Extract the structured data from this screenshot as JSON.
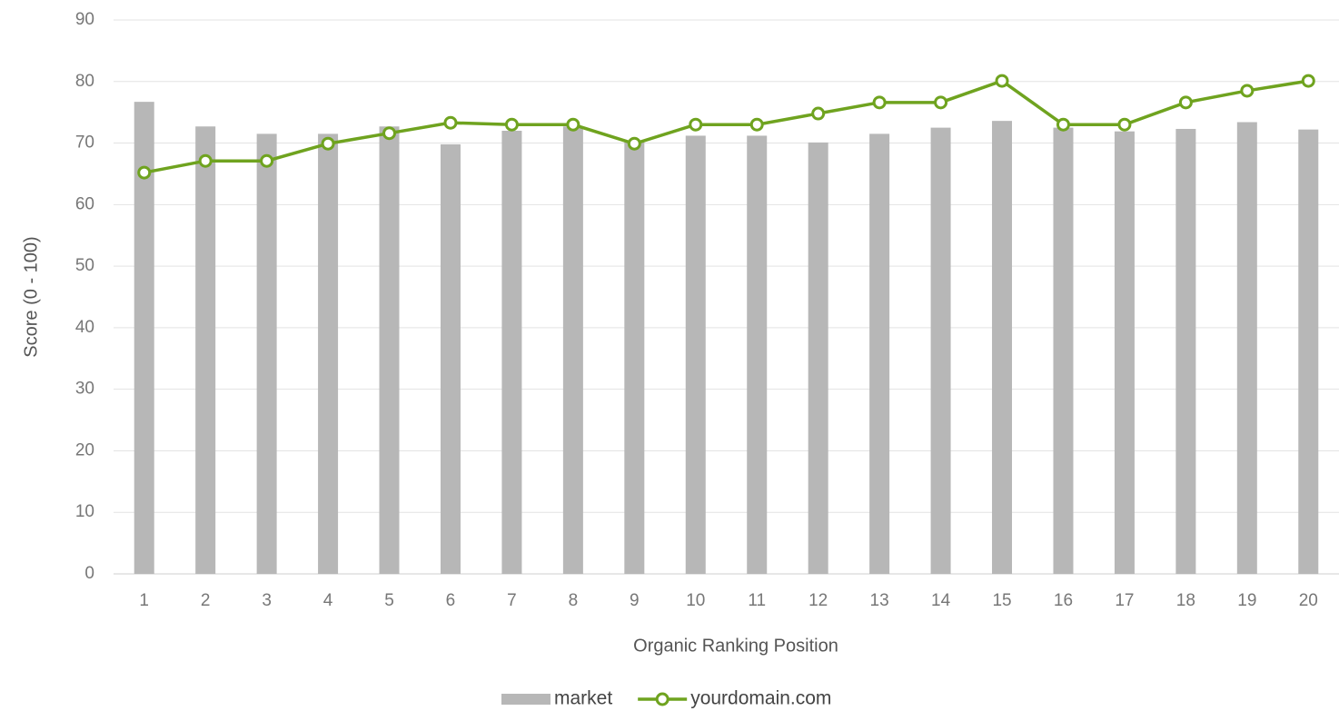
{
  "chart_data": {
    "type": "combo",
    "x_label": "Organic Ranking Position",
    "y_label": "Score (0 - 100)",
    "categories": [
      "1",
      "2",
      "3",
      "4",
      "5",
      "6",
      "7",
      "8",
      "9",
      "10",
      "11",
      "12",
      "13",
      "14",
      "15",
      "16",
      "17",
      "18",
      "19",
      "20"
    ],
    "series": [
      {
        "name": "market",
        "type": "bar",
        "color": "#b7b7b7",
        "values": [
          76.7,
          72.7,
          71.5,
          71.5,
          72.7,
          69.8,
          72.0,
          72.7,
          70.3,
          71.2,
          71.2,
          70.1,
          71.5,
          72.5,
          73.6,
          72.5,
          71.9,
          72.3,
          73.4,
          72.2
        ]
      },
      {
        "name": "yourdomain.com",
        "type": "line",
        "color": "#6fa31f",
        "values": [
          65.2,
          67.1,
          67.1,
          69.9,
          71.6,
          73.3,
          73.0,
          73.0,
          69.9,
          73.0,
          73.0,
          74.8,
          76.6,
          76.6,
          80.1,
          73.0,
          73.0,
          76.6,
          78.5,
          80.1
        ]
      }
    ],
    "ylim": [
      0,
      90
    ],
    "yticks": [
      0,
      10,
      20,
      30,
      40,
      50,
      60,
      70,
      80,
      90
    ],
    "grid": true,
    "legend": "bottom"
  }
}
